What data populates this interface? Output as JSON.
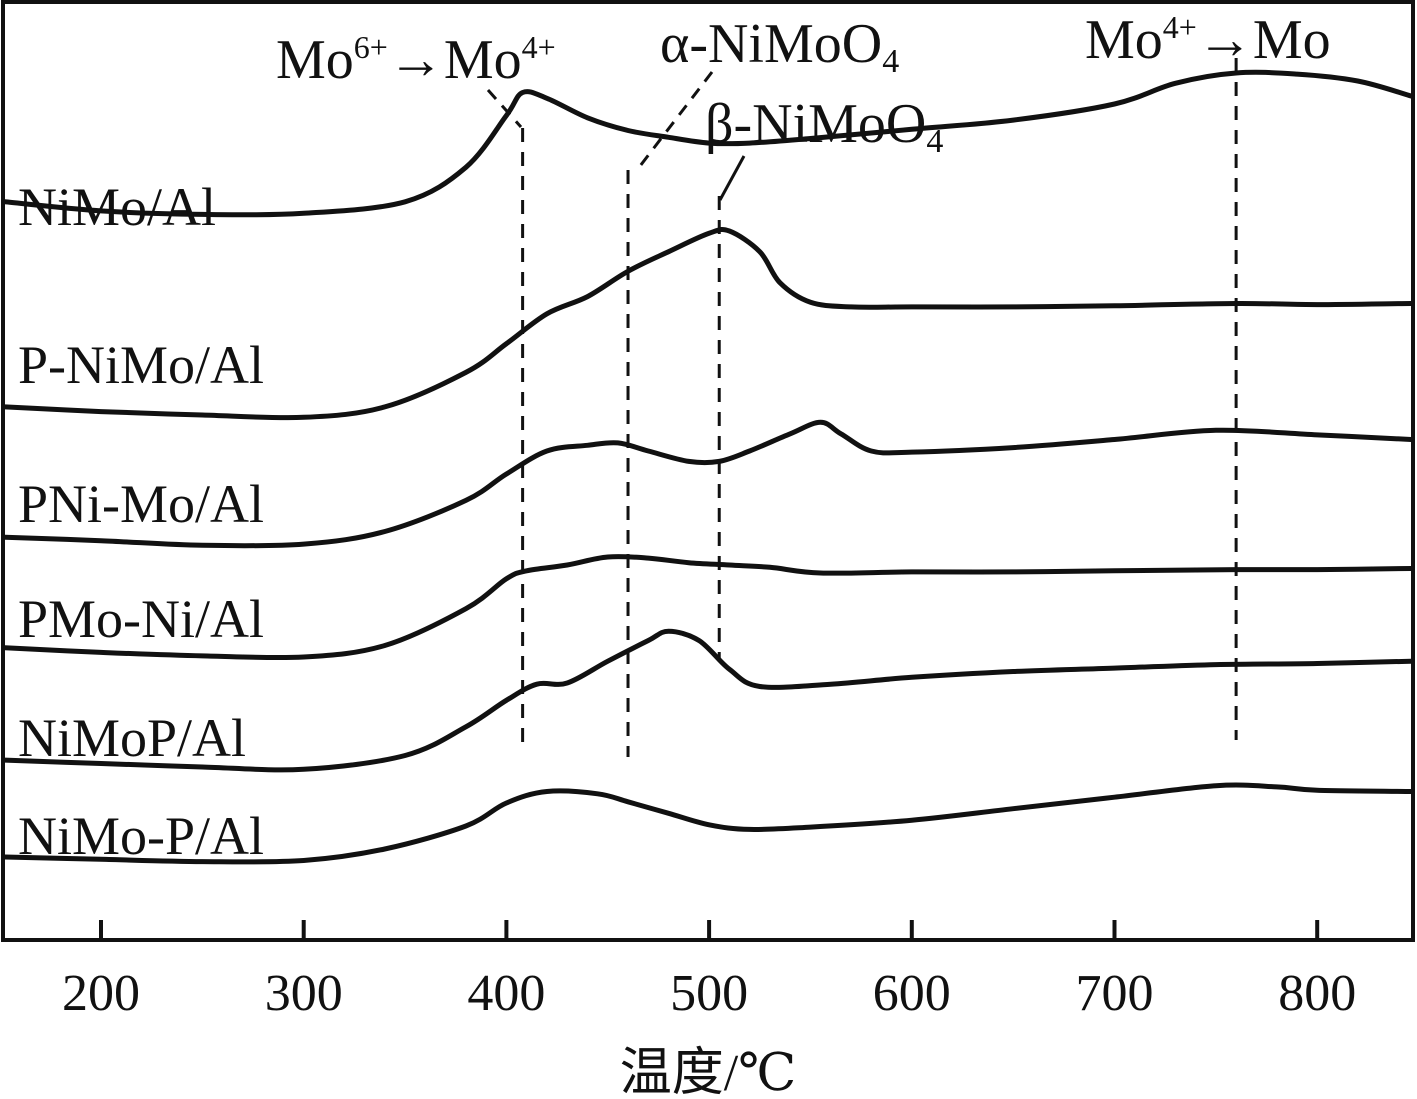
{
  "chart_data": {
    "type": "line",
    "title": "",
    "xlabel": "温度/℃",
    "ylabel": "",
    "xlim": [
      150,
      850
    ],
    "x_ticks": [
      200,
      300,
      400,
      500,
      600,
      700,
      800
    ],
    "tick_labels": [
      "200",
      "300",
      "400",
      "500",
      "600",
      "700",
      "800"
    ],
    "grid": false,
    "series": [
      {
        "name": "NiMo/Al",
        "points": [
          [
            150,
            0.55
          ],
          [
            200,
            0.47
          ],
          [
            250,
            0.44
          ],
          [
            300,
            0.45
          ],
          [
            350,
            0.55
          ],
          [
            380,
            0.85
          ],
          [
            400,
            1.3
          ],
          [
            408,
            1.5
          ],
          [
            420,
            1.45
          ],
          [
            440,
            1.28
          ],
          [
            460,
            1.17
          ],
          [
            480,
            1.11
          ],
          [
            500,
            1.06
          ],
          [
            520,
            1.06
          ],
          [
            550,
            1.1
          ],
          [
            600,
            1.18
          ],
          [
            650,
            1.26
          ],
          [
            700,
            1.4
          ],
          [
            730,
            1.58
          ],
          [
            760,
            1.67
          ],
          [
            790,
            1.66
          ],
          [
            820,
            1.6
          ],
          [
            850,
            1.47
          ]
        ]
      },
      {
        "name": "P-NiMo/Al",
        "points": [
          [
            150,
            0.27
          ],
          [
            200,
            0.23
          ],
          [
            250,
            0.2
          ],
          [
            300,
            0.18
          ],
          [
            340,
            0.27
          ],
          [
            380,
            0.57
          ],
          [
            400,
            0.82
          ],
          [
            420,
            1.08
          ],
          [
            440,
            1.23
          ],
          [
            460,
            1.45
          ],
          [
            480,
            1.62
          ],
          [
            500,
            1.78
          ],
          [
            510,
            1.8
          ],
          [
            525,
            1.62
          ],
          [
            535,
            1.35
          ],
          [
            550,
            1.18
          ],
          [
            570,
            1.14
          ],
          [
            600,
            1.14
          ],
          [
            650,
            1.14
          ],
          [
            700,
            1.15
          ],
          [
            760,
            1.17
          ],
          [
            800,
            1.16
          ],
          [
            850,
            1.17
          ]
        ]
      },
      {
        "name": "PNi-Mo/Al",
        "points": [
          [
            150,
            0.25
          ],
          [
            200,
            0.22
          ],
          [
            250,
            0.18
          ],
          [
            300,
            0.19
          ],
          [
            340,
            0.3
          ],
          [
            380,
            0.57
          ],
          [
            400,
            0.8
          ],
          [
            420,
            1.0
          ],
          [
            440,
            1.05
          ],
          [
            455,
            1.07
          ],
          [
            470,
            1.0
          ],
          [
            490,
            0.91
          ],
          [
            505,
            0.91
          ],
          [
            520,
            1.0
          ],
          [
            540,
            1.15
          ],
          [
            555,
            1.25
          ],
          [
            565,
            1.15
          ],
          [
            580,
            1.0
          ],
          [
            600,
            0.99
          ],
          [
            650,
            1.03
          ],
          [
            700,
            1.1
          ],
          [
            750,
            1.18
          ],
          [
            800,
            1.14
          ],
          [
            850,
            1.1
          ]
        ]
      },
      {
        "name": "PMo-Ni/Al",
        "points": [
          [
            150,
            0.28
          ],
          [
            200,
            0.24
          ],
          [
            250,
            0.21
          ],
          [
            300,
            0.2
          ],
          [
            340,
            0.3
          ],
          [
            380,
            0.62
          ],
          [
            400,
            0.88
          ],
          [
            410,
            0.95
          ],
          [
            430,
            1.0
          ],
          [
            450,
            1.07
          ],
          [
            470,
            1.06
          ],
          [
            490,
            1.02
          ],
          [
            510,
            1.0
          ],
          [
            530,
            0.98
          ],
          [
            555,
            0.93
          ],
          [
            600,
            0.94
          ],
          [
            650,
            0.94
          ],
          [
            700,
            0.95
          ],
          [
            760,
            0.96
          ],
          [
            800,
            0.96
          ],
          [
            850,
            0.97
          ]
        ]
      },
      {
        "name": "NiMoP/Al",
        "points": [
          [
            150,
            0.26
          ],
          [
            200,
            0.23
          ],
          [
            250,
            0.2
          ],
          [
            300,
            0.18
          ],
          [
            350,
            0.3
          ],
          [
            380,
            0.55
          ],
          [
            400,
            0.78
          ],
          [
            415,
            0.92
          ],
          [
            430,
            0.93
          ],
          [
            450,
            1.12
          ],
          [
            470,
            1.3
          ],
          [
            480,
            1.38
          ],
          [
            495,
            1.3
          ],
          [
            510,
            1.05
          ],
          [
            525,
            0.9
          ],
          [
            560,
            0.92
          ],
          [
            600,
            0.98
          ],
          [
            650,
            1.03
          ],
          [
            700,
            1.06
          ],
          [
            750,
            1.09
          ],
          [
            800,
            1.1
          ],
          [
            850,
            1.12
          ]
        ]
      },
      {
        "name": "NiMo-P/Al",
        "points": [
          [
            150,
            0.2
          ],
          [
            200,
            0.18
          ],
          [
            250,
            0.16
          ],
          [
            300,
            0.17
          ],
          [
            340,
            0.27
          ],
          [
            380,
            0.47
          ],
          [
            400,
            0.67
          ],
          [
            420,
            0.77
          ],
          [
            445,
            0.75
          ],
          [
            460,
            0.68
          ],
          [
            480,
            0.58
          ],
          [
            500,
            0.48
          ],
          [
            520,
            0.44
          ],
          [
            550,
            0.46
          ],
          [
            600,
            0.52
          ],
          [
            650,
            0.62
          ],
          [
            700,
            0.72
          ],
          [
            750,
            0.82
          ],
          [
            780,
            0.81
          ],
          [
            800,
            0.78
          ],
          [
            850,
            0.77
          ]
        ]
      }
    ],
    "reference_lines": [
      {
        "name": "Mo6-Mo4",
        "x": 408
      },
      {
        "name": "alpha-NiMoO4",
        "x": 460
      },
      {
        "name": "beta-NiMoO4",
        "x": 505
      },
      {
        "name": "Mo4-Mo",
        "x": 760
      }
    ],
    "annotations": {
      "mo6_to_mo4": {
        "base": "Mo",
        "sup1": "6+",
        "arrow": "→",
        "base2": "Mo",
        "sup2": "4+"
      },
      "alpha": {
        "prefix": "α-NiMoO",
        "sub": "4"
      },
      "beta": {
        "prefix": "β-NiMoO",
        "sub": "4"
      },
      "mo4_to_mo": {
        "base": "Mo",
        "sup1": "4+",
        "arrow": "→",
        "base2": "Mo"
      }
    }
  }
}
